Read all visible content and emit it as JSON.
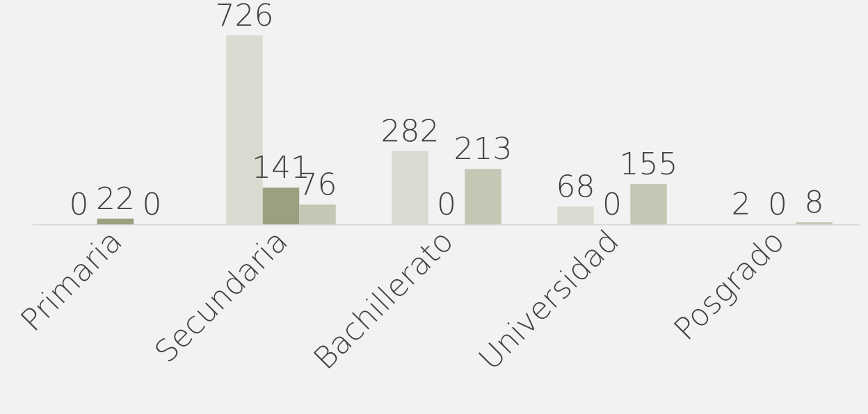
{
  "chart_data": {
    "type": "bar",
    "categories": [
      "Primaria",
      "Secundaria",
      "Bachillerato",
      "Universidad",
      "Posgrado"
    ],
    "series": [
      {
        "color": "#d9dbd0",
        "values": [
          0,
          726,
          282,
          68,
          2
        ]
      },
      {
        "color": "#9ba080",
        "values": [
          22,
          141,
          0,
          0,
          0
        ]
      },
      {
        "color": "#c5c7b5",
        "values": [
          0,
          76,
          213,
          155,
          8
        ]
      }
    ],
    "ylim": [
      0,
      800
    ]
  }
}
